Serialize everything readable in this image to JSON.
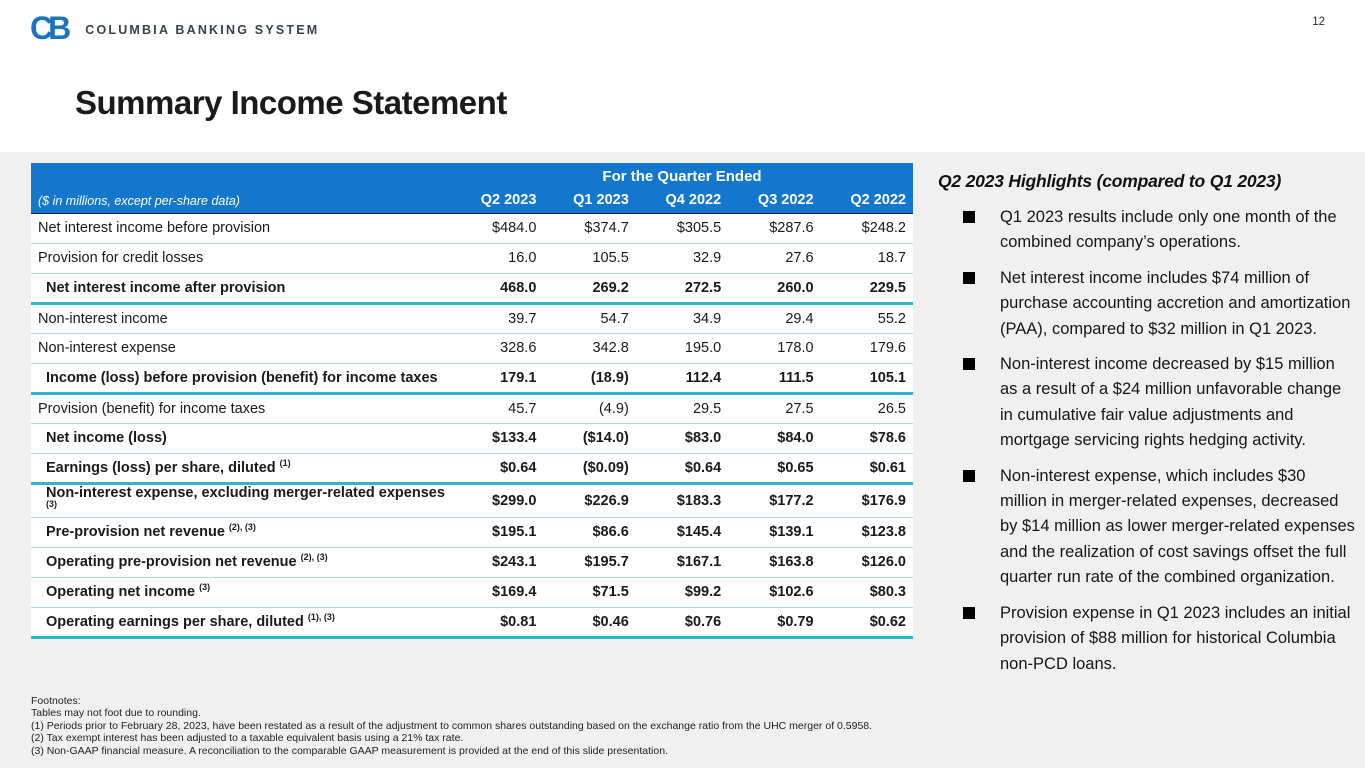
{
  "page_number": "12",
  "logo": {
    "monogram": "CB",
    "name": "COLUMBIA BANKING SYSTEM"
  },
  "title": "Summary Income Statement",
  "table": {
    "span_header": "For the Quarter Ended",
    "units_label": "($ in millions, except per-share data)",
    "columns": [
      "Q2 2023",
      "Q1 2023",
      "Q4 2022",
      "Q3 2022",
      "Q2 2022"
    ],
    "rows": [
      {
        "label": "Net interest income before provision",
        "sup": "",
        "bold": false,
        "indent": false,
        "thick": false,
        "values": [
          "$484.0",
          "$374.7",
          "$305.5",
          "$287.6",
          "$248.2"
        ]
      },
      {
        "label": "Provision for credit losses",
        "sup": "",
        "bold": false,
        "indent": false,
        "thick": false,
        "values": [
          "16.0",
          "105.5",
          "32.9",
          "27.6",
          "18.7"
        ]
      },
      {
        "label": "Net interest income after provision",
        "sup": "",
        "bold": true,
        "indent": true,
        "thick": true,
        "values": [
          "468.0",
          "269.2",
          "272.5",
          "260.0",
          "229.5"
        ]
      },
      {
        "label": "Non-interest income",
        "sup": "",
        "bold": false,
        "indent": false,
        "thick": false,
        "values": [
          "39.7",
          "54.7",
          "34.9",
          "29.4",
          "55.2"
        ]
      },
      {
        "label": "Non-interest expense",
        "sup": "",
        "bold": false,
        "indent": false,
        "thick": false,
        "values": [
          "328.6",
          "342.8",
          "195.0",
          "178.0",
          "179.6"
        ]
      },
      {
        "label": "Income (loss) before provision (benefit) for income taxes",
        "sup": "",
        "bold": true,
        "indent": true,
        "thick": true,
        "values": [
          "179.1",
          "(18.9)",
          "112.4",
          "111.5",
          "105.1"
        ]
      },
      {
        "label": "Provision (benefit) for income taxes",
        "sup": "",
        "bold": false,
        "indent": false,
        "thick": false,
        "values": [
          "45.7",
          "(4.9)",
          "29.5",
          "27.5",
          "26.5"
        ]
      },
      {
        "label": "Net income (loss)",
        "sup": "",
        "bold": true,
        "indent": true,
        "thick": false,
        "values": [
          "$133.4",
          "($14.0)",
          "$83.0",
          "$84.0",
          "$78.6"
        ]
      },
      {
        "label": "Earnings (loss) per share, diluted",
        "sup": "(1)",
        "bold": true,
        "indent": true,
        "thick": true,
        "values": [
          "$0.64",
          "($0.09)",
          "$0.64",
          "$0.65",
          "$0.61"
        ]
      },
      {
        "label": "Non-interest expense, excluding merger-related expenses",
        "sup": "(3)",
        "bold": true,
        "indent": true,
        "thick": false,
        "values": [
          "$299.0",
          "$226.9",
          "$183.3",
          "$177.2",
          "$176.9"
        ]
      },
      {
        "label": "Pre-provision net revenue",
        "sup": "(2), (3)",
        "bold": true,
        "indent": true,
        "thick": false,
        "values": [
          "$195.1",
          "$86.6",
          "$145.4",
          "$139.1",
          "$123.8"
        ]
      },
      {
        "label": "Operating pre-provision net revenue",
        "sup": "(2), (3)",
        "bold": true,
        "indent": true,
        "thick": false,
        "values": [
          "$243.1",
          "$195.7",
          "$167.1",
          "$163.8",
          "$126.0"
        ]
      },
      {
        "label": "Operating net income",
        "sup": "(3)",
        "bold": true,
        "indent": true,
        "thick": false,
        "values": [
          "$169.4",
          "$71.5",
          "$99.2",
          "$102.6",
          "$80.3"
        ]
      },
      {
        "label": "Operating earnings per share, diluted",
        "sup": "(1), (3)",
        "bold": true,
        "indent": true,
        "thick": true,
        "values": [
          "$0.81",
          "$0.46",
          "$0.76",
          "$0.79",
          "$0.62"
        ]
      }
    ]
  },
  "footnotes": {
    "lines": [
      "Footnotes:",
      "Tables may not foot due to rounding.",
      "(1) Periods prior to February 28, 2023, have been restated as a result of the adjustment to common shares outstanding based on the exchange ratio from the UHC merger of 0.5958.",
      "(2) Tax exempt interest has been adjusted to a taxable equivalent basis using a 21% tax rate.",
      "(3) Non-GAAP financial measure.  A reconciliation to the comparable GAAP measurement is provided at the end of this slide presentation."
    ]
  },
  "highlights": {
    "title": "Q2 2023 Highlights (compared to Q1 2023)",
    "bullets": [
      "Q1 2023 results include only one month of the combined company’s operations.",
      "Net interest income includes $74 million of purchase accounting accretion and amortization (PAA), compared to $32 million in Q1 2023.",
      "Non-interest income decreased by $15 million as a result of a $24 million unfavorable change in cumulative fair value adjustments and mortgage servicing rights hedging activity.",
      "Non-interest expense, which includes $30 million in merger-related expenses, decreased by $14 million as lower merger-related expenses and the realization of cost savings offset the full quarter run rate of the combined organization.",
      "Provision expense in Q1 2023 includes an initial provision of $88 million for historical Columbia non-PCD loans."
    ]
  },
  "colors": {
    "header_blue": "#1477ce",
    "accent_teal": "#2fb4c9",
    "row_line": "#a6dee8",
    "band_gray": "#f0f0f0",
    "logo_blue": "#1b75bc"
  }
}
